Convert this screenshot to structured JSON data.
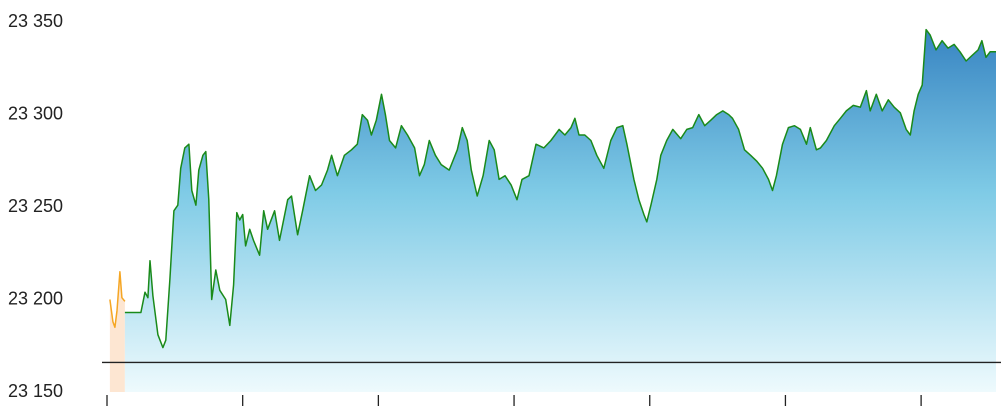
{
  "chart_data": {
    "type": "area",
    "xlim": [
      0,
      394
    ],
    "xticks": [
      0,
      60,
      120,
      180,
      240,
      300,
      360
    ],
    "ylim": [
      23150,
      23362
    ],
    "yticks": [
      {
        "value": 23150,
        "label": "23 150"
      },
      {
        "value": 23200,
        "label": "23 200"
      },
      {
        "value": 23250,
        "label": "23 250"
      },
      {
        "value": 23300,
        "label": "23 300"
      },
      {
        "value": 23350,
        "label": "23 350"
      }
    ],
    "reference_line": 23166,
    "series": [
      {
        "color": "#f5a623",
        "fill": "#fde6d2",
        "x": [
          1.3,
          2.6,
          3.5,
          4.4,
          5.7,
          6.6,
          7.9
        ],
        "values": [
          23200,
          23188,
          23185,
          23194,
          23215,
          23201,
          23199
        ]
      },
      {
        "color": "#1a8a1a",
        "fill": "gradient",
        "x": [
          7.9,
          15.0,
          16.8,
          18.1,
          19.0,
          20.3,
          22.5,
          24.7,
          26.0,
          27.8,
          29.6,
          31.3,
          32.6,
          34.4,
          36.2,
          37.5,
          39.3,
          40.6,
          42.4,
          43.7,
          45.0,
          46.3,
          48.1,
          49.9,
          52.5,
          54.3,
          56.0,
          57.4,
          58.7,
          60.0,
          61.3,
          63.1,
          64.8,
          67.5,
          69.3,
          71.0,
          74.1,
          76.3,
          79.9,
          81.6,
          84.3,
          86.5,
          89.6,
          92.2,
          94.9,
          97.5,
          99.3,
          101.9,
          105.0,
          108.1,
          110.7,
          112.9,
          115.2,
          116.9,
          119.1,
          121.4,
          123.1,
          124.9,
          127.6,
          130.2,
          132.9,
          136.0,
          138.2,
          140.3,
          142.5,
          145.2,
          147.8,
          151.3,
          154.9,
          157.1,
          159.3,
          161.1,
          163.7,
          166.3,
          169.0,
          171.2,
          173.4,
          176.0,
          178.7,
          181.3,
          183.5,
          186.6,
          189.7,
          193.2,
          196.3,
          199.9,
          202.5,
          205.2,
          206.9,
          208.7,
          211.3,
          214.0,
          216.6,
          219.7,
          222.8,
          225.5,
          228.1,
          229.9,
          233.0,
          235.2,
          237.4,
          238.7,
          240.5,
          243.1,
          244.9,
          247.5,
          250.2,
          253.7,
          256.4,
          259.0,
          261.7,
          264.3,
          267.0,
          269.6,
          272.3,
          274.9,
          276.6,
          279.3,
          281.9,
          284.6,
          287.2,
          289.9,
          292.5,
          294.3,
          296.0,
          298.7,
          301.3,
          304.0,
          306.6,
          309.3,
          311.0,
          313.7,
          315.5,
          318.1,
          321.6,
          324.3,
          326.9,
          330.0,
          333.1,
          335.8,
          337.5,
          340.2,
          342.8,
          345.5,
          348.1,
          350.8,
          353.4,
          355.2,
          356.9,
          358.7,
          360.5,
          362.2,
          364.0,
          366.6,
          369.3,
          371.9,
          374.6,
          377.2,
          379.9,
          382.5,
          385.2,
          386.9,
          388.7,
          390.5,
          393.1
        ],
        "values": [
          23193,
          23193,
          23204,
          23201,
          23221,
          23202,
          23181,
          23174,
          23178,
          23211,
          23248,
          23251,
          23271,
          23282,
          23284,
          23259,
          23251,
          23270,
          23278,
          23280,
          23254,
          23200,
          23216,
          23205,
          23200,
          23186,
          23208,
          23247,
          23243,
          23246,
          23229,
          23238,
          23232,
          23224,
          23248,
          23238,
          23248,
          23232,
          23254,
          23256,
          23235,
          23248,
          23267,
          23259,
          23262,
          23270,
          23278,
          23267,
          23278,
          23281,
          23284,
          23300,
          23297,
          23289,
          23297,
          23311,
          23300,
          23286,
          23282,
          23294,
          23289,
          23282,
          23267,
          23273,
          23286,
          23278,
          23273,
          23270,
          23281,
          23293,
          23286,
          23270,
          23256,
          23267,
          23286,
          23281,
          23265,
          23267,
          23262,
          23254,
          23265,
          23267,
          23284,
          23282,
          23286,
          23292,
          23289,
          23293,
          23298,
          23289,
          23289,
          23286,
          23278,
          23271,
          23286,
          23293,
          23294,
          23284,
          23265,
          23254,
          23246,
          23242,
          23251,
          23265,
          23278,
          23286,
          23292,
          23287,
          23292,
          23293,
          23300,
          23294,
          23297,
          23300,
          23302,
          23300,
          23298,
          23292,
          23281,
          23278,
          23275,
          23271,
          23265,
          23259,
          23267,
          23284,
          23293,
          23294,
          23292,
          23284,
          23293,
          23281,
          23282,
          23286,
          23294,
          23298,
          23302,
          23305,
          23304,
          23313,
          23302,
          23311,
          23302,
          23308,
          23304,
          23301,
          23292,
          23289,
          23302,
          23311,
          23316,
          23346,
          23343,
          23335,
          23340,
          23336,
          23338,
          23334,
          23329,
          23332,
          23335,
          23340,
          23331,
          23334,
          23334
        ]
      }
    ]
  }
}
